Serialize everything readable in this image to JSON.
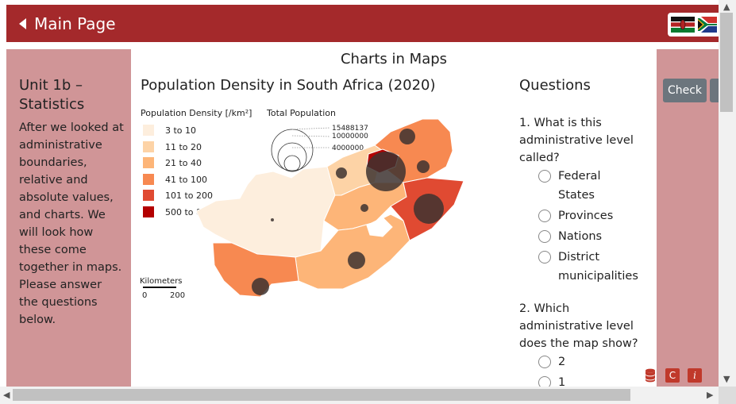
{
  "header": {
    "back_label": "Main Page"
  },
  "left": {
    "unit_title": "Unit 1b – Statistics",
    "text": "After we looked at administrative boundaries, relative and absolute values, and charts. We will look how these come together in maps. Please answer the questions below."
  },
  "page_title": "Charts in Maps",
  "map": {
    "title": "Population Density in South Africa (2020)",
    "density_legend_title": "Population Density [/km²]",
    "population_legend_title": "Total Population",
    "density_classes": [
      {
        "label": "3 to 10",
        "color": "#fdeedd"
      },
      {
        "label": "11 to 20",
        "color": "#fdd3a6"
      },
      {
        "label": "21 to 40",
        "color": "#fdb578"
      },
      {
        "label": "41 to 100",
        "color": "#f78951"
      },
      {
        "label": "101 to 200",
        "color": "#e04a32"
      },
      {
        "label": "500 to 853",
        "color": "#b30000"
      }
    ],
    "population_values": [
      "15488137",
      "10000000",
      "4000000"
    ],
    "scale_title": "Kilometers",
    "scale_min": "0",
    "scale_max": "200"
  },
  "questions": {
    "title": "Questions",
    "q1": "1. What is this administrative level called?",
    "q1_options": [
      "Federal States",
      "Provinces",
      "Nations",
      "District municipalities"
    ],
    "q2": "2. Which administrative level does the map show?",
    "q2_options": [
      "2",
      "1"
    ]
  },
  "right": {
    "check_label": "Check",
    "c_label": "C",
    "i_label": "i"
  },
  "colors": {
    "header": "#a4292b",
    "side_panel": "#d09597",
    "bubble": "#3d3330"
  }
}
